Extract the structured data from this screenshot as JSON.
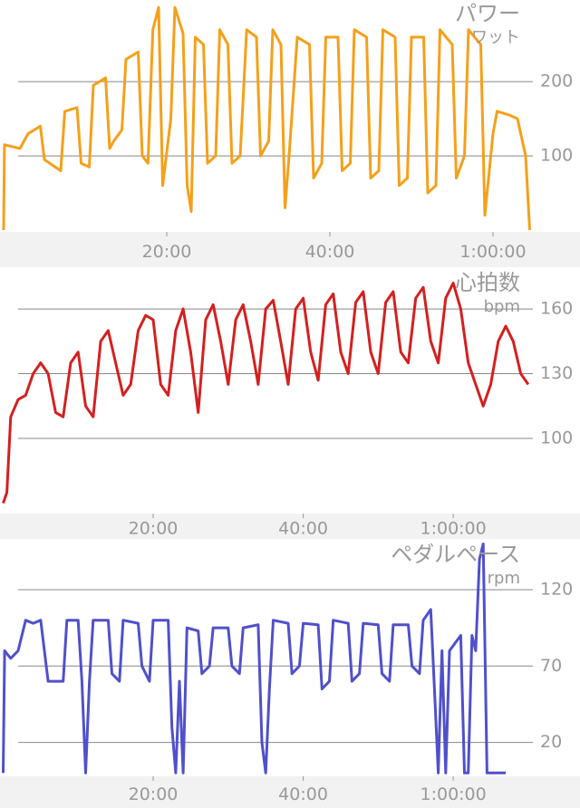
{
  "chart_data": [
    {
      "type": "line",
      "title": "パワー",
      "y_label": "ワット",
      "color": "#f5a01a",
      "x": [
        0,
        0.1,
        2,
        3,
        4.5,
        5,
        7,
        7.5,
        9,
        9.5,
        10.5,
        11,
        12.5,
        13,
        13.5,
        14.5,
        15,
        16.5,
        17,
        17.7,
        18.3,
        19,
        19.5,
        20.5,
        21,
        22,
        22.5,
        23,
        23.5,
        24.5,
        25,
        26,
        26.5,
        27.5,
        28,
        29,
        29.8,
        31,
        31.5,
        32.5,
        33,
        34,
        34.5,
        35,
        36,
        37.5,
        38,
        39,
        39.5,
        41,
        41.5,
        42.5,
        43,
        44.5,
        45,
        46,
        46.5,
        48,
        48.5,
        49.5,
        50,
        51.5,
        52,
        53,
        53.5,
        55,
        55.5,
        56.5,
        57,
        58.5,
        59,
        60,
        60.5,
        62,
        63,
        64,
        64.5
      ],
      "values": [
        0,
        115,
        110,
        130,
        140,
        95,
        80,
        160,
        165,
        90,
        85,
        195,
        205,
        110,
        120,
        135,
        230,
        240,
        100,
        90,
        270,
        300,
        60,
        150,
        300,
        265,
        60,
        25,
        260,
        250,
        90,
        100,
        270,
        250,
        90,
        100,
        270,
        260,
        100,
        120,
        270,
        250,
        30,
        100,
        260,
        250,
        70,
        90,
        260,
        260,
        80,
        90,
        270,
        260,
        70,
        80,
        270,
        260,
        60,
        70,
        260,
        260,
        50,
        60,
        270,
        250,
        70,
        100,
        270,
        250,
        20,
        130,
        160,
        155,
        150,
        100,
        0
      ],
      "xlim": [
        -0.44,
        70.67
      ],
      "ylim": [
        0,
        310
      ],
      "yticks": [
        100,
        200
      ],
      "xticks": [
        {
          "value": 20,
          "label": "20:00"
        },
        {
          "value": 40,
          "label": "40:00"
        },
        {
          "value": 60,
          "label": "1:00:00"
        }
      ],
      "grid": true
    },
    {
      "type": "line",
      "title": "心拍数",
      "y_label": "bpm",
      "color": "#d42020",
      "x": [
        0,
        0.5,
        1,
        2,
        3,
        4,
        5,
        6,
        7,
        8,
        9,
        10,
        11,
        12,
        13,
        14,
        15,
        16,
        17,
        18,
        19,
        20,
        21,
        22,
        23,
        24,
        25,
        26,
        27,
        28,
        29,
        30,
        31,
        32,
        33,
        34,
        35,
        36,
        37,
        38,
        39,
        40,
        41,
        42,
        43,
        44,
        45,
        46,
        47,
        48,
        49,
        50,
        51,
        52,
        53,
        54,
        55,
        56,
        57,
        58,
        59,
        60,
        61,
        62,
        63,
        64,
        65,
        66,
        67,
        68,
        69,
        70
      ],
      "values": [
        70,
        75,
        110,
        118,
        120,
        130,
        135,
        130,
        112,
        110,
        135,
        140,
        115,
        110,
        145,
        150,
        135,
        120,
        125,
        150,
        157,
        155,
        125,
        120,
        150,
        160,
        140,
        112,
        155,
        162,
        145,
        125,
        155,
        162,
        145,
        125,
        160,
        164,
        145,
        125,
        160,
        165,
        140,
        127,
        162,
        167,
        140,
        130,
        163,
        168,
        140,
        130,
        163,
        168,
        140,
        135,
        165,
        170,
        145,
        135,
        165,
        172,
        160,
        135,
        125,
        115,
        125,
        145,
        152,
        145,
        130,
        125
      ],
      "xlim": [
        -0.42,
        76.9
      ],
      "ylim": [
        66,
        178.5
      ],
      "yticks": [
        100,
        130,
        160
      ],
      "xticks": [
        {
          "value": 20,
          "label": "20:00"
        },
        {
          "value": 40,
          "label": "40:00"
        },
        {
          "value": 60,
          "label": "1:00:00"
        }
      ],
      "grid": true
    },
    {
      "type": "line",
      "title": "ペダルペース",
      "y_label": "rpm",
      "color": "#5050cc",
      "x": [
        0,
        0.2,
        1,
        2,
        3,
        4,
        5,
        6,
        8,
        8.5,
        10,
        10.5,
        11,
        11.5,
        12,
        14,
        14.5,
        15.5,
        16,
        18,
        18.5,
        19.5,
        20,
        22,
        22.5,
        23,
        23.5,
        24,
        24.5,
        26,
        26.5,
        27.5,
        28,
        30,
        30.5,
        31.5,
        32,
        34,
        34.5,
        35,
        35.5,
        36,
        38,
        38.5,
        39.5,
        40,
        42,
        42.5,
        43.5,
        44,
        46,
        46.5,
        47.5,
        48,
        50,
        50.5,
        51.5,
        52,
        54,
        54.5,
        55.5,
        56,
        57,
        57.5,
        58,
        58.5,
        59,
        59.5,
        61,
        61.5,
        62,
        62.5,
        63,
        63.5,
        64,
        64.5,
        67
      ],
      "values": [
        0,
        80,
        75,
        80,
        100,
        98,
        100,
        60,
        60,
        100,
        100,
        60,
        0,
        60,
        100,
        100,
        65,
        60,
        100,
        98,
        70,
        60,
        100,
        100,
        30,
        0,
        60,
        0,
        95,
        93,
        65,
        70,
        95,
        95,
        70,
        65,
        95,
        97,
        20,
        0,
        55,
        100,
        98,
        65,
        70,
        98,
        97,
        55,
        60,
        100,
        98,
        60,
        65,
        98,
        97,
        65,
        60,
        97,
        97,
        70,
        65,
        100,
        107,
        55,
        0,
        80,
        0,
        80,
        90,
        0,
        0,
        90,
        80,
        140,
        150,
        0,
        0
      ],
      "xlim": [
        -0.42,
        76.9
      ],
      "ylim": [
        -1,
        152
      ],
      "yticks": [
        20,
        70,
        120
      ],
      "xticks": [
        {
          "value": 20,
          "label": "20:00"
        },
        {
          "value": 40,
          "label": "40:00"
        },
        {
          "value": 60,
          "label": "1:00:00"
        }
      ],
      "grid": true
    }
  ]
}
